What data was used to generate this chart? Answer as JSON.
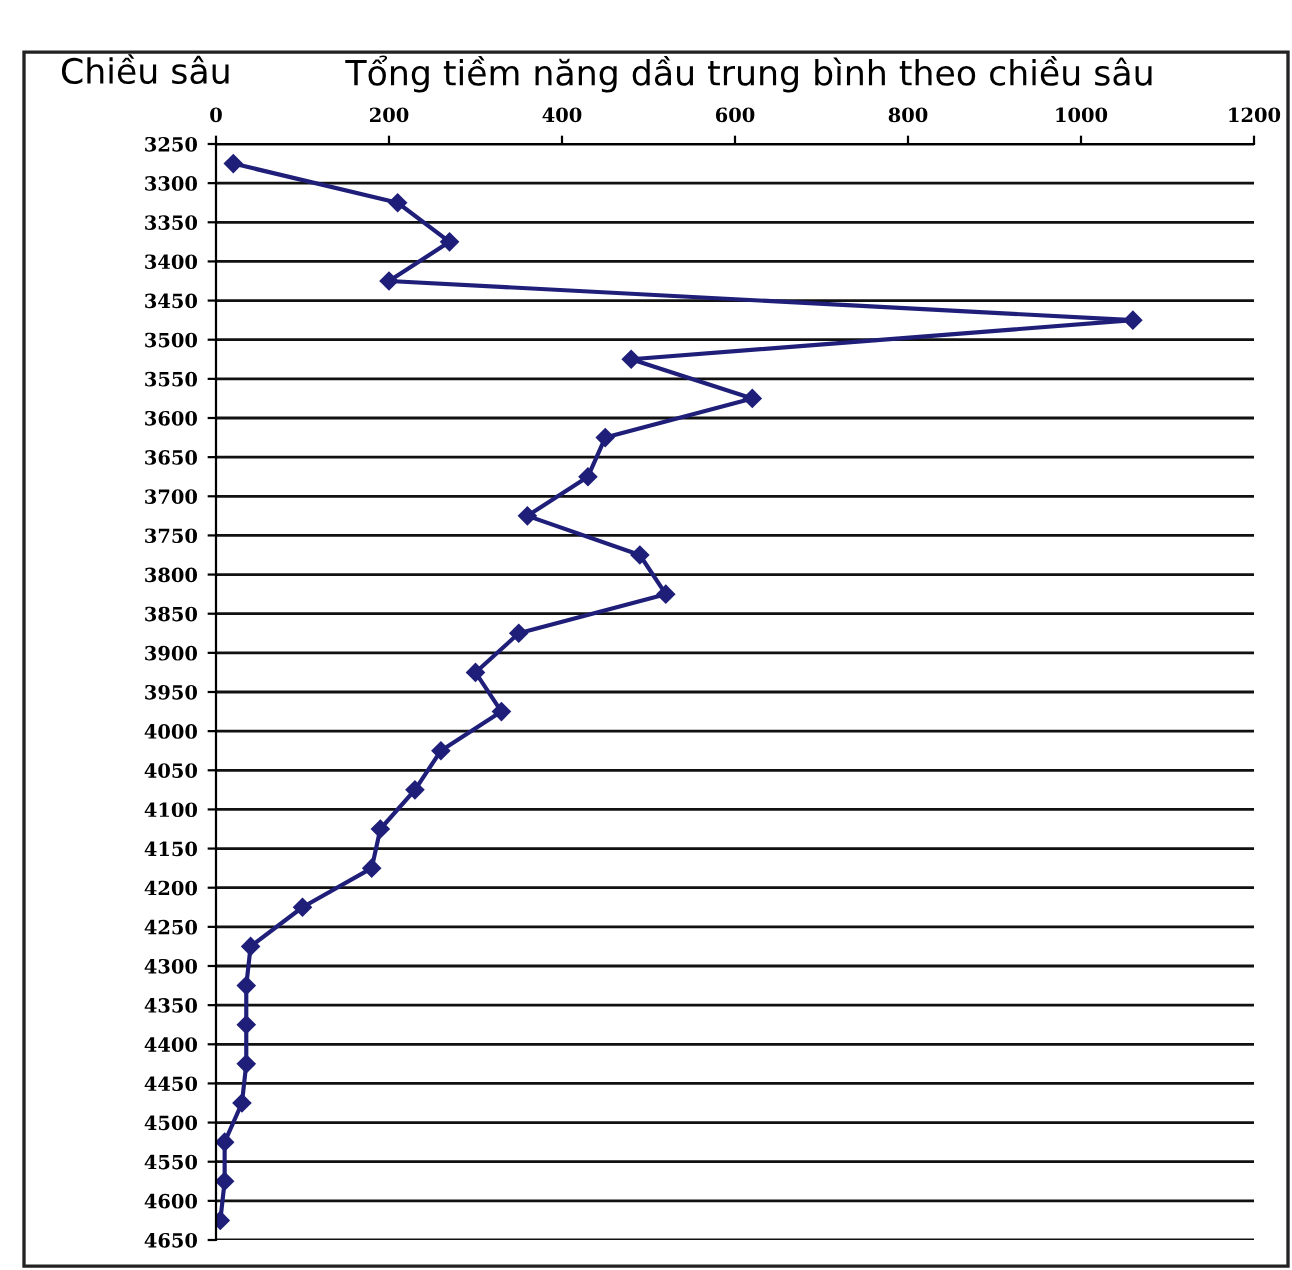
{
  "chart_data": {
    "type": "line",
    "title": "Tổng tiềm năng dầu trung bình theo chiều sâu",
    "ylabel": "Chiều sâu",
    "series": [
      {
        "color": "#1f1f7a",
        "x": [
          20,
          210,
          270,
          200,
          1060,
          480,
          620,
          450,
          430,
          360,
          490,
          520,
          350,
          300,
          330,
          260,
          230,
          190,
          180,
          100,
          40,
          35,
          35,
          35,
          30,
          10,
          10,
          5
        ],
        "values": [
          3275,
          3325,
          3375,
          3425,
          3475,
          3525,
          3575,
          3625,
          3675,
          3725,
          3775,
          3825,
          3875,
          3925,
          3975,
          4025,
          4075,
          4125,
          4175,
          4225,
          4275,
          4325,
          4375,
          4425,
          4475,
          4525,
          4575,
          4625
        ]
      }
    ],
    "xlim": [
      0,
      1200
    ],
    "xticks": [
      0,
      200,
      400,
      600,
      800,
      1000,
      1200
    ],
    "ylim": [
      4650,
      3250
    ],
    "yticks": [
      3250,
      3300,
      3350,
      3400,
      3450,
      3500,
      3550,
      3600,
      3650,
      3700,
      3750,
      3800,
      3850,
      3900,
      3950,
      4000,
      4050,
      4100,
      4150,
      4200,
      4250,
      4300,
      4350,
      4400,
      4450,
      4500,
      4550,
      4600,
      4650
    ],
    "grid": "y",
    "marker": "diamond",
    "line_style": "solid",
    "legend": false
  }
}
